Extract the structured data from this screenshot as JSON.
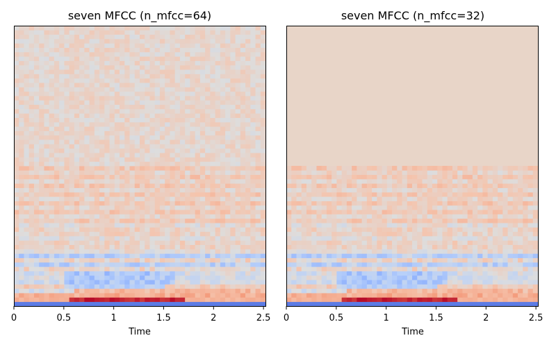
{
  "chart_data": [
    {
      "type": "heatmap",
      "title": "seven MFCC (n_mfcc=64)",
      "xlabel": "Time",
      "ylabel": "",
      "xlim": [
        0,
        2.52
      ],
      "xticks": [
        "0",
        "0.5",
        "1",
        "1.5",
        "2",
        "2.5"
      ],
      "n_rows": 64,
      "n_cols": 50,
      "colormap": "coolwarm",
      "colors": {
        "cold": "#3b4cc0",
        "mid": "#dddddd",
        "warm": "#b40426",
        "zero_pad": "#e8d5c8"
      }
    },
    {
      "type": "heatmap",
      "title": "seven MFCC (n_mfcc=32)",
      "xlabel": "Time",
      "ylabel": "",
      "xlim": [
        0,
        2.52
      ],
      "xticks": [
        "0",
        "0.5",
        "1",
        "1.5",
        "2",
        "2.5"
      ],
      "n_rows": 32,
      "padded_rows": 32,
      "n_cols": 50,
      "colormap": "coolwarm",
      "colors": {
        "cold": "#3b4cc0",
        "mid": "#dddddd",
        "warm": "#b40426",
        "zero_pad": "#e8d5c8"
      }
    }
  ]
}
